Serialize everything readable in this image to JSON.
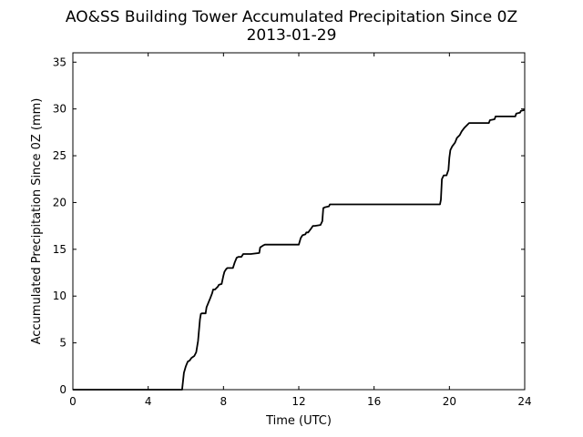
{
  "chart_data": {
    "type": "line",
    "title": "AO&SS Building Tower Accumulated Precipitation Since 0Z",
    "subtitle": "2013-01-29",
    "xlabel": "Time (UTC)",
    "ylabel": "Accumulated Precipitation Since 0Z (mm)",
    "xlim": [
      0,
      24
    ],
    "ylim": [
      0,
      36
    ],
    "xticks": [
      0,
      4,
      8,
      12,
      16,
      20,
      24
    ],
    "yticks": [
      0,
      5,
      10,
      15,
      20,
      25,
      30,
      35
    ],
    "grid": false,
    "line_color": "#000000",
    "series": [
      {
        "x": [
          0,
          5.8,
          5.9,
          6.0,
          6.1,
          6.2,
          6.3,
          6.45,
          6.55,
          6.65,
          6.75,
          6.8,
          6.85,
          7.05,
          7.1,
          7.2,
          7.3,
          7.4,
          7.45,
          7.55,
          7.7,
          7.75,
          7.9,
          8.0,
          8.05,
          8.15,
          8.2,
          8.25,
          8.5,
          8.6,
          8.7,
          8.8,
          8.95,
          9.05,
          9.4,
          9.45,
          9.9,
          9.95,
          10.1,
          10.2,
          12.0,
          12.1,
          12.2,
          12.35,
          12.4,
          12.5,
          12.65,
          12.75,
          12.85,
          13.15,
          13.25,
          13.3,
          13.4,
          13.6,
          13.65,
          19.5,
          19.55,
          19.6,
          19.7,
          19.85,
          19.95,
          20.0,
          20.05,
          20.15,
          20.3,
          20.4,
          20.55,
          20.65,
          20.8,
          20.9,
          21.05,
          21.25,
          21.3,
          21.5,
          21.6,
          22.1,
          22.15,
          22.4,
          22.45,
          22.75,
          22.8,
          23.5,
          23.55,
          23.75,
          23.8,
          24.0
        ],
        "y": [
          0,
          0,
          1.8,
          2.5,
          3.0,
          3.1,
          3.4,
          3.6,
          4.0,
          5.2,
          7.5,
          8.1,
          8.15,
          8.15,
          8.8,
          9.3,
          9.8,
          10.3,
          10.7,
          10.7,
          11.0,
          11.2,
          11.3,
          12.2,
          12.6,
          12.9,
          13.0,
          13.0,
          13.0,
          13.6,
          14.1,
          14.2,
          14.2,
          14.5,
          14.5,
          14.5,
          14.6,
          15.2,
          15.4,
          15.5,
          15.5,
          16.2,
          16.5,
          16.6,
          16.8,
          16.8,
          17.2,
          17.5,
          17.5,
          17.6,
          18.0,
          19.4,
          19.5,
          19.6,
          19.8,
          19.8,
          20.3,
          22.5,
          22.9,
          22.9,
          23.5,
          24.8,
          25.6,
          26.0,
          26.4,
          26.9,
          27.2,
          27.6,
          28.0,
          28.2,
          28.5,
          28.5,
          28.5,
          28.5,
          28.5,
          28.5,
          28.8,
          28.9,
          29.2,
          29.2,
          29.2,
          29.2,
          29.5,
          29.6,
          29.8,
          29.9
        ]
      }
    ]
  }
}
